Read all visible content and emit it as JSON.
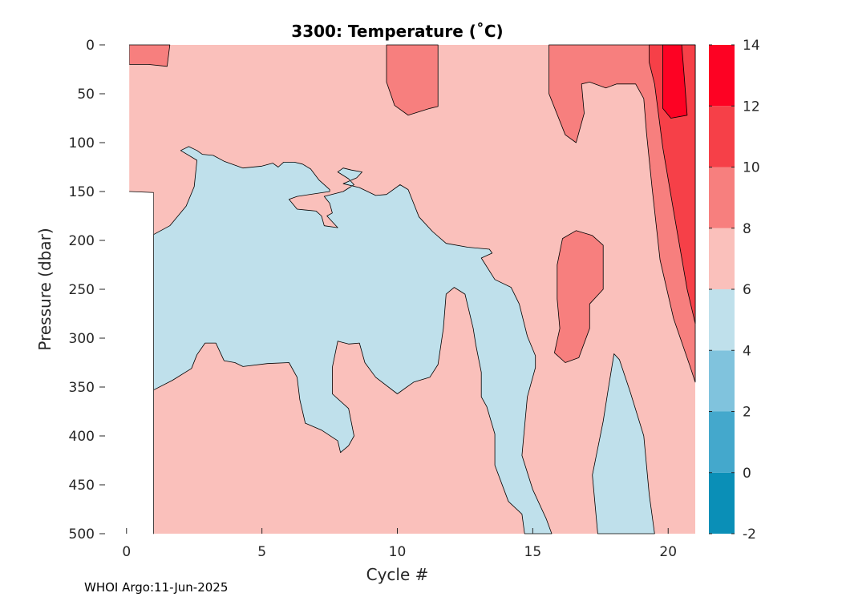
{
  "chart_data": {
    "type": "heatmap",
    "subtype": "filled-contour",
    "title": "3300:  Temperature (˚C)",
    "xlabel": "Cycle #",
    "ylabel": "Pressure (dbar)",
    "xlim": [
      -1,
      21
    ],
    "ylim": [
      500,
      0
    ],
    "y_reversed": true,
    "xticks": [
      0,
      5,
      10,
      15,
      20
    ],
    "yticks": [
      0,
      50,
      100,
      150,
      200,
      250,
      300,
      350,
      400,
      450,
      500
    ],
    "grid": false,
    "colorbar": {
      "position": "right",
      "levels": [
        -2,
        0,
        2,
        4,
        6,
        8,
        10,
        12,
        14
      ],
      "colors": [
        "#0a8fb7",
        "#44a8cc",
        "#80c3dd",
        "#bfe0eb",
        "#fac0bb",
        "#f77f7e",
        "#f64048",
        "#fd0223"
      ]
    },
    "contour_levels": [
      4,
      6,
      8,
      10,
      12
    ],
    "regions": [
      {
        "level_range": [
          4,
          6
        ],
        "color": "#bfe0eb",
        "polygon": [
          [
            1,
            500
          ],
          [
            1,
            194
          ],
          [
            1.6,
            185
          ],
          [
            2.2,
            165
          ],
          [
            2.5,
            145
          ],
          [
            2.6,
            118
          ],
          [
            2,
            108
          ],
          [
            2.3,
            104
          ],
          [
            2.6,
            108
          ],
          [
            2.8,
            112
          ],
          [
            3.2,
            113
          ],
          [
            3.6,
            119
          ],
          [
            4.3,
            126
          ],
          [
            5,
            124
          ],
          [
            5.4,
            121
          ],
          [
            5.6,
            125
          ],
          [
            5.8,
            120
          ],
          [
            6.2,
            120
          ],
          [
            6.5,
            122
          ],
          [
            6.8,
            127
          ],
          [
            7.1,
            138
          ],
          [
            7.5,
            148
          ],
          [
            7.5,
            150
          ],
          [
            6.3,
            155
          ],
          [
            6,
            158
          ],
          [
            6.3,
            168
          ],
          [
            7,
            170
          ],
          [
            7.2,
            175
          ],
          [
            7.3,
            185
          ],
          [
            7.8,
            187
          ],
          [
            7.4,
            175
          ],
          [
            7.6,
            172
          ],
          [
            7.5,
            162
          ],
          [
            7.3,
            155
          ],
          [
            8,
            150
          ],
          [
            8.4,
            143
          ],
          [
            8.2,
            137
          ],
          [
            7.8,
            130
          ],
          [
            8,
            126
          ],
          [
            8.3,
            128
          ],
          [
            8.7,
            130
          ],
          [
            8.5,
            136
          ],
          [
            8,
            142
          ],
          [
            8.6,
            146
          ],
          [
            9.2,
            154
          ],
          [
            9.6,
            153
          ],
          [
            10.1,
            143
          ],
          [
            10.4,
            148
          ],
          [
            10.8,
            176
          ],
          [
            11.3,
            191
          ],
          [
            11.8,
            203
          ],
          [
            12.6,
            207
          ],
          [
            13.4,
            209
          ],
          [
            13.5,
            213
          ],
          [
            13.1,
            218
          ],
          [
            13.6,
            240
          ],
          [
            14.2,
            248
          ],
          [
            14.5,
            265
          ],
          [
            14.8,
            298
          ],
          [
            15.1,
            318
          ],
          [
            15.1,
            330
          ],
          [
            14.8,
            360
          ],
          [
            14.6,
            420
          ],
          [
            15,
            455
          ],
          [
            15.5,
            485
          ],
          [
            15.7,
            500
          ],
          [
            14.7,
            500
          ],
          [
            14.6,
            480
          ],
          [
            14.1,
            467
          ],
          [
            13.6,
            430
          ],
          [
            13.6,
            398
          ],
          [
            13.3,
            370
          ],
          [
            13.1,
            360
          ],
          [
            13.1,
            335
          ],
          [
            12.9,
            307
          ],
          [
            12.8,
            290
          ],
          [
            12.5,
            255
          ],
          [
            12.1,
            248
          ],
          [
            11.8,
            255
          ],
          [
            11.7,
            290
          ],
          [
            11.5,
            327
          ],
          [
            11.2,
            340
          ],
          [
            10.6,
            345
          ],
          [
            10,
            357
          ],
          [
            9.2,
            340
          ],
          [
            8.8,
            325
          ],
          [
            8.6,
            305
          ],
          [
            8.2,
            306
          ],
          [
            7.8,
            303
          ],
          [
            7.6,
            330
          ],
          [
            7.6,
            357
          ],
          [
            8.2,
            372
          ],
          [
            8.4,
            400
          ],
          [
            8.2,
            410
          ],
          [
            7.9,
            417
          ],
          [
            7.8,
            405
          ],
          [
            7.2,
            394
          ],
          [
            6.6,
            387
          ],
          [
            6.4,
            363
          ],
          [
            6.3,
            340
          ],
          [
            6,
            325
          ],
          [
            5.2,
            326
          ],
          [
            4.3,
            329
          ],
          [
            4,
            325
          ],
          [
            3.6,
            323
          ],
          [
            3.3,
            305
          ],
          [
            2.9,
            305
          ],
          [
            2.6,
            317
          ],
          [
            2.4,
            331
          ],
          [
            1.7,
            343
          ],
          [
            1,
            353
          ]
        ]
      },
      {
        "level_range": [
          4,
          6
        ],
        "color": "#bfe0eb",
        "polygon": [
          [
            17.4,
            500
          ],
          [
            17.2,
            440
          ],
          [
            17.6,
            385
          ],
          [
            17.8,
            350
          ],
          [
            18,
            316
          ],
          [
            18.2,
            322
          ],
          [
            18.6,
            355
          ],
          [
            19.1,
            400
          ],
          [
            19.3,
            460
          ],
          [
            19.5,
            500
          ]
        ]
      },
      {
        "level_range": [
          8,
          10
        ],
        "color": "#f77f7e",
        "polygon": [
          [
            0.1,
            0
          ],
          [
            0.1,
            20
          ],
          [
            0.8,
            20
          ],
          [
            1.5,
            22
          ],
          [
            1.6,
            0
          ]
        ]
      },
      {
        "level_range": [
          8,
          10
        ],
        "color": "#f77f7e",
        "polygon": [
          [
            9.6,
            0
          ],
          [
            9.6,
            38
          ],
          [
            9.9,
            62
          ],
          [
            10.4,
            72
          ],
          [
            11.2,
            65
          ],
          [
            11.5,
            63
          ],
          [
            11.5,
            0
          ]
        ]
      },
      {
        "level_range": [
          8,
          10
        ],
        "color": "#f77f7e",
        "polygon": [
          [
            15.6,
            0
          ],
          [
            15.6,
            50
          ],
          [
            16.2,
            92
          ],
          [
            16.6,
            100
          ],
          [
            16.9,
            70
          ],
          [
            16.8,
            40
          ],
          [
            17.1,
            38
          ],
          [
            17.7,
            44
          ],
          [
            18.1,
            40
          ],
          [
            18.8,
            40
          ],
          [
            19.1,
            55
          ],
          [
            19.2,
            90
          ],
          [
            19.4,
            145
          ],
          [
            19.7,
            220
          ],
          [
            20.2,
            280
          ],
          [
            20.8,
            328
          ],
          [
            21,
            345
          ],
          [
            21,
            0
          ]
        ]
      },
      {
        "level_range": [
          8,
          10
        ],
        "color": "#f77f7e",
        "polygon": [
          [
            15.9,
            225
          ],
          [
            16.1,
            198
          ],
          [
            16.6,
            190
          ],
          [
            17.2,
            195
          ],
          [
            17.6,
            205
          ],
          [
            17.6,
            250
          ],
          [
            17.1,
            265
          ],
          [
            17.1,
            290
          ],
          [
            16.7,
            320
          ],
          [
            16.2,
            325
          ],
          [
            15.8,
            315
          ],
          [
            16,
            290
          ],
          [
            15.9,
            260
          ]
        ]
      },
      {
        "level_range": [
          10,
          12
        ],
        "color": "#f64048",
        "polygon": [
          [
            19.3,
            0
          ],
          [
            19.3,
            18
          ],
          [
            19.5,
            40
          ],
          [
            19.8,
            105
          ],
          [
            20.2,
            170
          ],
          [
            20.7,
            250
          ],
          [
            21,
            285
          ],
          [
            21,
            0
          ]
        ]
      },
      {
        "level_range": [
          12,
          14
        ],
        "color": "#fd0223",
        "polygon": [
          [
            19.8,
            0
          ],
          [
            19.8,
            65
          ],
          [
            20.1,
            75
          ],
          [
            20.7,
            72
          ],
          [
            20.6,
            35
          ],
          [
            20.5,
            0
          ]
        ]
      }
    ],
    "background_level_range": [
      6,
      8
    ],
    "no_data": [
      [
        [
          -1,
          0
        ],
        [
          0.1,
          0
        ],
        [
          0.1,
          150
        ],
        [
          1,
          151
        ],
        [
          1,
          500
        ],
        [
          -1,
          500
        ]
      ]
    ]
  },
  "footer": {
    "credit": "WHOI Argo:11-Jun-2025"
  }
}
